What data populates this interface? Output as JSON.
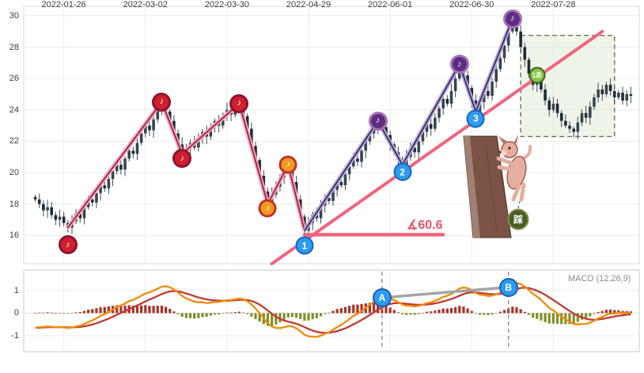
{
  "chart_data": {
    "type": "candlestick_with_macd",
    "x_tick_labels": [
      "2022-01-26",
      "2022-03-02",
      "2022-03-30",
      "2022-04-29",
      "2022-06-01",
      "2022-06-30",
      "2022-07-28"
    ],
    "x_tick_indices": [
      7,
      27,
      47,
      67,
      87,
      107,
      127
    ],
    "price_ticks": [
      16,
      18,
      20,
      22,
      24,
      26,
      28,
      30
    ],
    "price_ylim": [
      14.2,
      30.6
    ],
    "closes": [
      18.3,
      18.0,
      17.6,
      17.8,
      17.3,
      17.0,
      17.2,
      16.8,
      16.5,
      16.9,
      17.4,
      17.1,
      17.8,
      18.3,
      18.1,
      18.7,
      19.2,
      19.0,
      19.6,
      20.1,
      20.5,
      20.2,
      20.9,
      21.4,
      21.2,
      21.9,
      22.5,
      23.0,
      22.7,
      23.4,
      24.0,
      24.5,
      23.9,
      23.3,
      22.5,
      21.8,
      21.2,
      21.5,
      21.9,
      21.6,
      22.2,
      22.6,
      22.3,
      22.9,
      23.3,
      23.0,
      23.6,
      24.0,
      23.7,
      24.1,
      24.4,
      23.6,
      22.8,
      21.7,
      20.8,
      19.8,
      18.8,
      18.0,
      18.6,
      19.1,
      19.7,
      20.2,
      20.5,
      19.4,
      18.3,
      17.2,
      16.3,
      16.8,
      17.3,
      17.1,
      17.9,
      18.4,
      18.2,
      18.9,
      19.4,
      19.2,
      19.9,
      20.4,
      20.9,
      20.7,
      21.4,
      22.0,
      22.5,
      22.9,
      23.3,
      22.9,
      22.4,
      21.8,
      21.3,
      20.8,
      20.5,
      21.0,
      21.6,
      21.3,
      22.0,
      22.6,
      23.1,
      22.8,
      23.5,
      24.1,
      24.7,
      24.4,
      25.2,
      26.0,
      26.9,
      26.2,
      25.4,
      24.6,
      23.9,
      24.5,
      25.2,
      24.9,
      25.8,
      26.6,
      27.3,
      28.1,
      29.0,
      29.8,
      29.0,
      28.0,
      27.2,
      26.3,
      25.6,
      26.1,
      25.3,
      24.6,
      24.0,
      24.4,
      23.8,
      23.3,
      23.0,
      22.8,
      22.6,
      23.2,
      23.8,
      23.5,
      24.2,
      24.8,
      25.3,
      25.0,
      25.6,
      25.2,
      24.8,
      25.1,
      24.6,
      25.0,
      24.9
    ],
    "wave_markers": [
      {
        "i": 8,
        "p": 16.5,
        "color": "red",
        "glyph": "♪",
        "dy": 22
      },
      {
        "i": 31,
        "p": 24.5,
        "color": "red",
        "glyph": "♪",
        "dy": 0
      },
      {
        "i": 36,
        "p": 21.2,
        "color": "red",
        "glyph": "♪",
        "dy": 6
      },
      {
        "i": 50,
        "p": 24.4,
        "color": "red",
        "glyph": "♪",
        "dy": 0
      },
      {
        "i": 57,
        "p": 18.0,
        "color": "orange",
        "glyph": "♪",
        "dy": 5
      },
      {
        "i": 62,
        "p": 20.5,
        "color": "orange",
        "glyph": "♪",
        "dy": 0
      },
      {
        "i": 84,
        "p": 23.3,
        "color": "purple",
        "glyph": "♪",
        "dy": 0
      },
      {
        "i": 104,
        "p": 26.9,
        "color": "purple",
        "glyph": "♪",
        "dy": 0
      },
      {
        "i": 117,
        "p": 29.8,
        "color": "purple",
        "glyph": "♪",
        "dy": 0
      }
    ],
    "number_markers": [
      {
        "i": 66,
        "p": 16.3,
        "label": "1",
        "dy": 19
      },
      {
        "i": 90,
        "p": 20.5,
        "label": "2",
        "dy": 9
      },
      {
        "i": 108,
        "p": 23.9,
        "label": "3",
        "dy": 9
      }
    ],
    "wave_lines": {
      "pink": [
        [
          8,
          16.5
        ],
        [
          31,
          24.5
        ],
        [
          36,
          21.2
        ],
        [
          50,
          24.4
        ],
        [
          57,
          18.0
        ],
        [
          62,
          20.5
        ],
        [
          66,
          16.3
        ]
      ],
      "purple": [
        [
          66,
          16.3
        ],
        [
          84,
          23.3
        ],
        [
          90,
          20.5
        ],
        [
          104,
          26.9
        ],
        [
          108,
          23.9
        ],
        [
          117,
          29.8
        ]
      ]
    },
    "trend_line": {
      "from_i": 58,
      "from_p": 14.2,
      "to_i": 139,
      "to_p": 29.0,
      "label": "∡60.6"
    },
    "horizontal_line": {
      "price": 16.05,
      "from_i": 66,
      "to_i": 100
    },
    "highlight_box": {
      "from_i": 119,
      "to_i": 142,
      "p_low": 22.3,
      "p_high": 28.75
    },
    "green_badge": {
      "i": 123,
      "p": 26.2,
      "label": "1走"
    },
    "hanging_badge": {
      "label": "踩"
    },
    "macd": {
      "label": "MACD (12,26,9)",
      "params": [
        12,
        26,
        9
      ],
      "ticks": [
        -1,
        0,
        1
      ],
      "ylim": [
        -1.7,
        1.9
      ],
      "ab_markers": [
        {
          "label": "A",
          "i": 85,
          "v": 0.45
        },
        {
          "label": "B",
          "i": 116,
          "v": 1.6
        }
      ]
    },
    "colors": {
      "candle_up": "#36454f",
      "candle_down": "#1f2a33",
      "wick": "#3c4c59",
      "pink_line": "#f2647f",
      "pink_wave": "#f6a7bd",
      "pink_core": "#9c2033",
      "purple_wave": "#b9a8e3",
      "purple_core": "#372a4d",
      "macd_line": "#ef8b08",
      "signal_line": "#bf3b33",
      "hist_pos": "#a93226",
      "hist_neg": "#7f8f2a",
      "marker_red": "#d01f2e",
      "marker_orange": "#f09a1f",
      "marker_purple": "#5c2d82",
      "marker_blue": "#2d9bf0",
      "badge_green": "#8bc34a",
      "badge_dark": "#4b5d23",
      "grid": "#ebebeb",
      "box_fill": "#e4ecd8",
      "box_edge": "#66755a"
    }
  }
}
